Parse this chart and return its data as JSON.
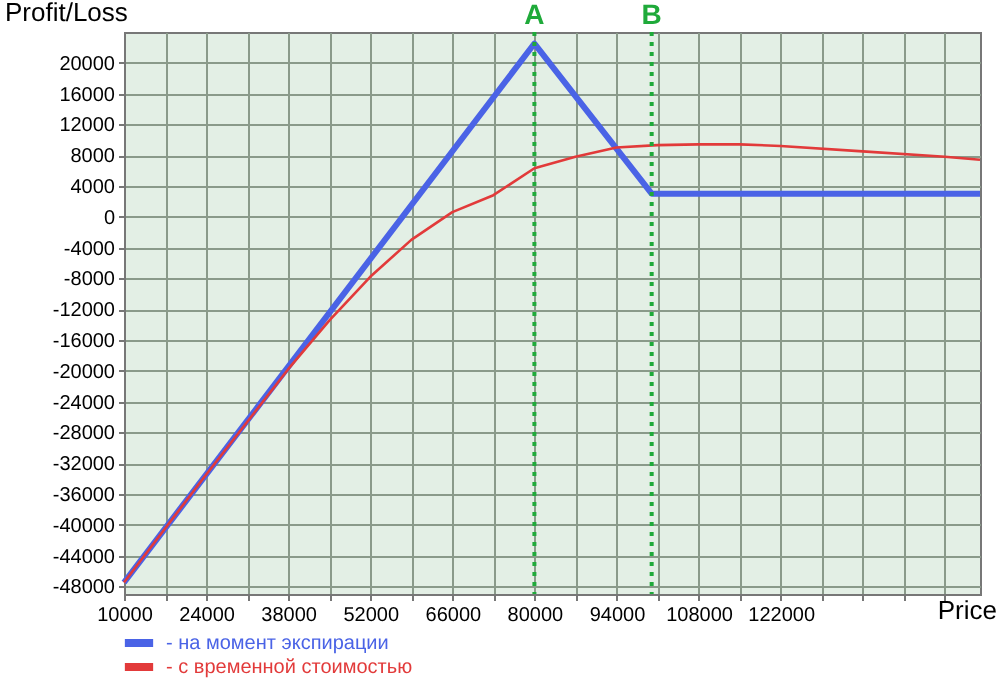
{
  "chart_data": {
    "type": "line",
    "xlabel": "Price",
    "ylabel": "Profit/Loss",
    "series": [
      {
        "name": "- на момент экспирации",
        "color": "#4a63e6",
        "x": [
          10000,
          80000,
          100000,
          156000
        ],
        "values": [
          -47500,
          22500,
          3000,
          3000
        ]
      },
      {
        "name": "- с временной стоимостью",
        "color": "#e23a3a",
        "x": [
          10000,
          24000,
          38000,
          45000,
          52000,
          59000,
          66000,
          73000,
          80000,
          87000,
          94000,
          101000,
          108000,
          115000,
          122000,
          136000,
          150000,
          156000
        ],
        "values": [
          -47500,
          -33500,
          -19800,
          -13500,
          -7800,
          -3000,
          600,
          2800,
          6300,
          7800,
          9000,
          9300,
          9400,
          9400,
          9200,
          8500,
          7800,
          7400
        ]
      }
    ],
    "xlim": [
      10000,
      156000
    ],
    "xticks": [
      10000,
      {
        "value": 17000,
        "label": null
      },
      24000,
      {
        "value": 31000,
        "label": null
      },
      38000,
      {
        "value": 45000,
        "label": null
      },
      52000,
      {
        "value": 59000,
        "label": null
      },
      66000,
      {
        "value": 73000,
        "label": null
      },
      80000,
      {
        "value": 87000,
        "label": null
      },
      94000,
      {
        "value": 101000,
        "label": null
      },
      108000,
      {
        "value": 115000,
        "label": null
      },
      122000,
      {
        "value": 129000,
        "label": null
      },
      {
        "value": 136000,
        "label": null
      },
      {
        "value": 143000,
        "label": null
      },
      {
        "value": 150000,
        "label": null
      }
    ],
    "ylim": [
      -49000,
      24000
    ],
    "yticks": [
      -48000,
      -44000,
      -40000,
      -36000,
      -32000,
      -28000,
      -24000,
      -20000,
      -16000,
      -12000,
      -8000,
      -4000,
      0,
      4000,
      8000,
      12000,
      16000,
      20000
    ],
    "ref_lines": [
      {
        "axis": "x",
        "value": 80000,
        "label": "A",
        "color": "#1faa3a",
        "line_style": "dotted"
      },
      {
        "axis": "x",
        "value": 100000,
        "label": "B",
        "color": "#1faa3a",
        "line_style": "dotted"
      }
    ],
    "grid": true,
    "legend": "bottom left",
    "line_style": "solid",
    "marker": "none"
  }
}
